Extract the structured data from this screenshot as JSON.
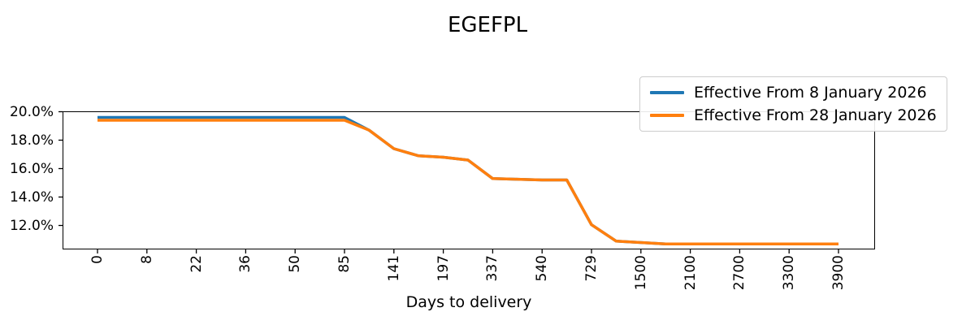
{
  "chart_data": {
    "type": "line",
    "title": "EGEFPL",
    "xlabel": "Days to delivery",
    "ylabel": "",
    "grid": false,
    "legend_position": "upper right",
    "x_axis": {
      "tick_labels": [
        "0",
        "8",
        "22",
        "36",
        "50",
        "85",
        "141",
        "197",
        "337",
        "540",
        "729",
        "1500",
        "2100",
        "2700",
        "3300",
        "3900"
      ],
      "scale": "categorical",
      "tick_rotation_deg": 90
    },
    "y_axis": {
      "tick_labels": [
        "20.0%",
        "18.0%",
        "16.0%",
        "14.0%",
        "12.0%"
      ],
      "tick_values": [
        20.0,
        18.0,
        16.0,
        14.0,
        12.0
      ],
      "unit": "percent",
      "ylim": [
        10.35,
        20.0
      ]
    },
    "x_encoding": "points are [tick_index, percent]; half indices are unlabeled points midway between ticks",
    "series": [
      {
        "name": "Effective From 8 January 2026",
        "color": "#1f77b4",
        "points": [
          [
            0,
            19.6
          ],
          [
            1,
            19.6
          ],
          [
            2,
            19.6
          ],
          [
            3,
            19.6
          ],
          [
            4,
            19.6
          ],
          [
            5,
            19.6
          ],
          [
            5.5,
            18.7
          ],
          [
            6,
            17.4
          ],
          [
            6.5,
            16.9
          ],
          [
            7,
            16.8
          ],
          [
            7.5,
            16.6
          ],
          [
            8,
            15.3
          ],
          [
            8.5,
            15.25
          ],
          [
            9,
            15.2
          ],
          [
            9.5,
            15.2
          ],
          [
            10,
            12.05
          ],
          [
            10.5,
            10.9
          ],
          [
            11,
            10.8
          ],
          [
            11.5,
            10.7
          ],
          [
            12,
            10.7
          ],
          [
            13,
            10.7
          ],
          [
            14,
            10.7
          ],
          [
            15,
            10.7
          ]
        ]
      },
      {
        "name": "Effective From 28 January 2026",
        "color": "#ff7f0e",
        "points": [
          [
            0,
            19.4
          ],
          [
            1,
            19.4
          ],
          [
            2,
            19.4
          ],
          [
            3,
            19.4
          ],
          [
            4,
            19.4
          ],
          [
            5,
            19.4
          ],
          [
            5.5,
            18.7
          ],
          [
            6,
            17.4
          ],
          [
            6.5,
            16.9
          ],
          [
            7,
            16.8
          ],
          [
            7.5,
            16.6
          ],
          [
            8,
            15.3
          ],
          [
            8.5,
            15.25
          ],
          [
            9,
            15.2
          ],
          [
            9.5,
            15.2
          ],
          [
            10,
            12.05
          ],
          [
            10.5,
            10.9
          ],
          [
            11,
            10.8
          ],
          [
            11.5,
            10.7
          ],
          [
            12,
            10.7
          ],
          [
            13,
            10.7
          ],
          [
            14,
            10.7
          ],
          [
            15,
            10.7
          ]
        ]
      }
    ]
  }
}
